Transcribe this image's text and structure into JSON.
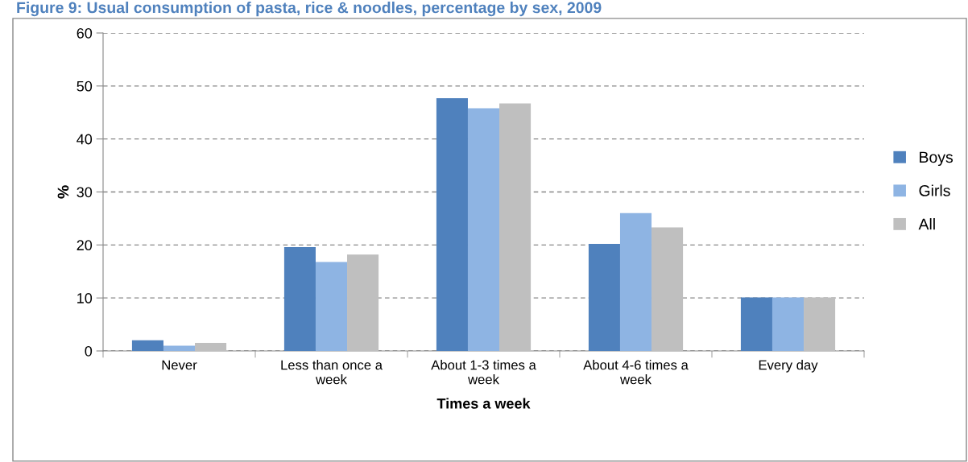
{
  "chart_data": {
    "type": "bar",
    "title": "Figure 9: Usual consumption of pasta, rice & noodles, percentage by sex, 2009",
    "xlabel": "Times a week",
    "ylabel": "%",
    "categories": [
      "Never",
      "Less than once a\nweek",
      "About 1-3 times a\nweek",
      "About 4-6 times a\nweek",
      "Every day"
    ],
    "series": [
      {
        "name": "Boys",
        "color": "#4f81bd",
        "values": [
          2.0,
          19.6,
          47.7,
          20.2,
          10.1
        ]
      },
      {
        "name": "Girls",
        "color": "#8eb4e3",
        "values": [
          1.0,
          16.8,
          45.8,
          26.0,
          10.1
        ]
      },
      {
        "name": "All",
        "color": "#bfbfbf",
        "values": [
          1.5,
          18.2,
          46.7,
          23.3,
          10.1
        ]
      }
    ],
    "ylim": [
      0,
      60
    ],
    "yticks": [
      0,
      10,
      20,
      30,
      40,
      50,
      60
    ],
    "grid": "y",
    "legend": "right"
  }
}
